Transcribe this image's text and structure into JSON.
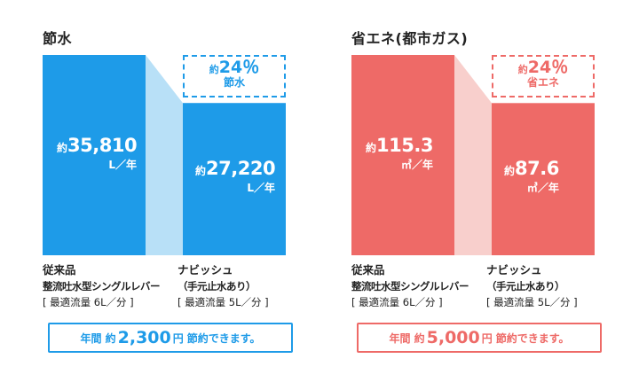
{
  "colors": {
    "water_bar": "#1e9be8",
    "water_connector": "#b8e0f7",
    "energy_bar": "#ee6a67",
    "energy_connector": "#f8cfcc",
    "text": "#222222"
  },
  "chart_data": [
    {
      "type": "bar",
      "title": "節水",
      "categories": [
        "従来品",
        "ナビッシュ"
      ],
      "values": [
        35810,
        27220
      ],
      "unit": "L／年",
      "value_prefix": "約",
      "value_labels": [
        "35,810",
        "27,220"
      ],
      "savings": {
        "prefix": "約",
        "percent": "24％",
        "label": "節水"
      },
      "captions": [
        {
          "line1": "従来品",
          "line2": "整流吐水型シングルレバー",
          "line3": "[ 最適流量 6L／分 ]"
        },
        {
          "line1": "ナビッシュ",
          "line2": "（手元止水あり）",
          "line3": "[ 最適流量 5L／分 ]"
        }
      ],
      "banner": {
        "part1": "年間 約",
        "amount": "2,300",
        "part2": "円",
        "part3": "節約できます。"
      }
    },
    {
      "type": "bar",
      "title": "省エネ(都市ガス)",
      "categories": [
        "従来品",
        "ナビッシュ"
      ],
      "values": [
        115.3,
        87.6
      ],
      "unit": "㎥／年",
      "value_prefix": "約",
      "value_labels": [
        "115.3",
        "87.6"
      ],
      "savings": {
        "prefix": "約",
        "percent": "24％",
        "label": "省エネ"
      },
      "captions": [
        {
          "line1": "従来品",
          "line2": "整流吐水型シングルレバー",
          "line3": "[ 最適流量 6L／分 ]"
        },
        {
          "line1": "ナビッシュ",
          "line2": "（手元止水あり）",
          "line3": "[ 最適流量 5L／分 ]"
        }
      ],
      "banner": {
        "part1": "年間 約",
        "amount": "5,000",
        "part2": "円",
        "part3": "節約できます。"
      }
    }
  ]
}
